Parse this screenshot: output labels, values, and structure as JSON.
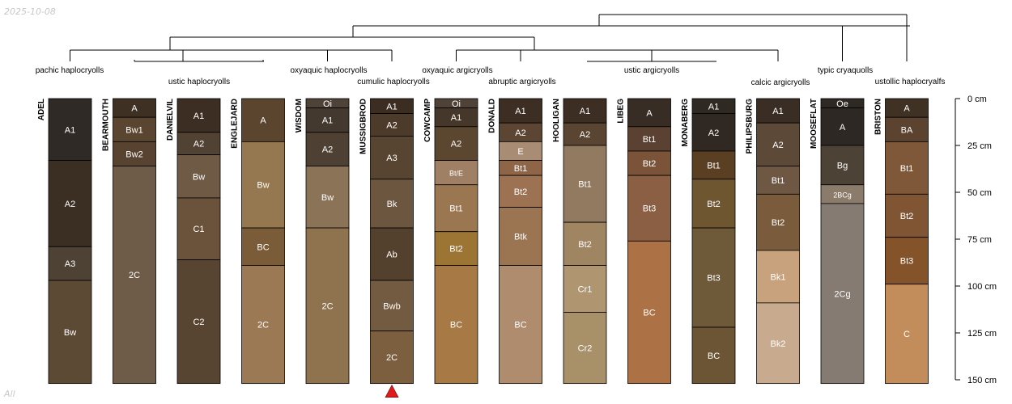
{
  "date_stamp": "2025-10-08",
  "corner_label": "All",
  "colors": {
    "line": "#000000",
    "marker": "#e01b1b",
    "horizon_text_light": "#ffffff"
  },
  "depth_axis": {
    "unit": "cm",
    "max_depth": 150,
    "ticks": [
      "0 cm",
      "25 cm",
      "50 cm",
      "75 cm",
      "100 cm",
      "125 cm",
      "150 cm"
    ]
  },
  "taxa_labels": [
    "pachic haplocryolls",
    "ustic haplocryolls",
    "oxyaquic haplocryolls",
    "cumulic haplocryolls",
    "oxyaquic argicryolls",
    "abruptic argicryolls",
    "ustic argicryolls",
    "calcic argicryolls",
    "typic cryaquolls",
    "ustollic haplocryalfs"
  ],
  "highlighted_profile": "MUSSIGBROD",
  "profiles": [
    {
      "name": "ADEL",
      "horizons": [
        {
          "name": "A1",
          "top": 0,
          "bottom": 33,
          "color": "#2f2a26"
        },
        {
          "name": "A2",
          "top": 33,
          "bottom": 79,
          "color": "#3b2f24"
        },
        {
          "name": "A3",
          "top": 79,
          "bottom": 97,
          "color": "#4e4235"
        },
        {
          "name": "Bw",
          "top": 97,
          "bottom": 152,
          "color": "#5c4a35"
        }
      ]
    },
    {
      "name": "BEARMOUTH",
      "horizons": [
        {
          "name": "A",
          "top": 0,
          "bottom": 10,
          "color": "#3f3024"
        },
        {
          "name": "Bw1",
          "top": 10,
          "bottom": 23,
          "color": "#5a4530"
        },
        {
          "name": "Bw2",
          "top": 23,
          "bottom": 36,
          "color": "#574330"
        },
        {
          "name": "2C",
          "top": 36,
          "bottom": 152,
          "color": "#6e5c48"
        }
      ]
    },
    {
      "name": "DANIELVIL",
      "horizons": [
        {
          "name": "A1",
          "top": 0,
          "bottom": 18,
          "color": "#3c2e22"
        },
        {
          "name": "A2",
          "top": 18,
          "bottom": 30,
          "color": "#514233"
        },
        {
          "name": "Bw",
          "top": 30,
          "bottom": 53,
          "color": "#6e5a45"
        },
        {
          "name": "C1",
          "top": 53,
          "bottom": 86,
          "color": "#6a533a"
        },
        {
          "name": "C2",
          "top": 86,
          "bottom": 152,
          "color": "#574531"
        }
      ]
    },
    {
      "name": "ENGLEJARD",
      "horizons": [
        {
          "name": "A",
          "top": 0,
          "bottom": 23,
          "color": "#5b452f"
        },
        {
          "name": "Bw",
          "top": 23,
          "bottom": 69,
          "color": "#957850"
        },
        {
          "name": "BC",
          "top": 69,
          "bottom": 89,
          "color": "#7a5c38"
        },
        {
          "name": "2C",
          "top": 89,
          "bottom": 152,
          "color": "#9a7954"
        }
      ]
    },
    {
      "name": "WISDOM",
      "horizons": [
        {
          "name": "Oi",
          "top": 0,
          "bottom": 5,
          "color": "#4f4338"
        },
        {
          "name": "A1",
          "top": 5,
          "bottom": 18,
          "color": "#43392f"
        },
        {
          "name": "A2",
          "top": 18,
          "bottom": 36,
          "color": "#4e4133"
        },
        {
          "name": "Bw",
          "top": 36,
          "bottom": 69,
          "color": "#8b7358"
        },
        {
          "name": "2C",
          "top": 69,
          "bottom": 152,
          "color": "#8f734f"
        }
      ]
    },
    {
      "name": "MUSSIGBROD",
      "horizons": [
        {
          "name": "A1",
          "top": 0,
          "bottom": 8,
          "color": "#3c2d22"
        },
        {
          "name": "A2",
          "top": 8,
          "bottom": 20,
          "color": "#4c3b2b"
        },
        {
          "name": "A3",
          "top": 20,
          "bottom": 43,
          "color": "#574431"
        },
        {
          "name": "Bk",
          "top": 43,
          "bottom": 69,
          "color": "#6c5640"
        },
        {
          "name": "Ab",
          "top": 69,
          "bottom": 97,
          "color": "#54412d"
        },
        {
          "name": "Bwb",
          "top": 97,
          "bottom": 124,
          "color": "#735b42"
        },
        {
          "name": "2C",
          "top": 124,
          "bottom": 152,
          "color": "#7c5f3e"
        }
      ]
    },
    {
      "name": "COWCAMP",
      "horizons": [
        {
          "name": "Oi",
          "top": 0,
          "bottom": 5,
          "color": "#4f4338"
        },
        {
          "name": "A1",
          "top": 5,
          "bottom": 15,
          "color": "#453729"
        },
        {
          "name": "A2",
          "top": 15,
          "bottom": 33,
          "color": "#5b4630"
        },
        {
          "name": "Bt/E",
          "top": 33,
          "bottom": 46,
          "color": "#a08065"
        },
        {
          "name": "Bt1",
          "top": 46,
          "bottom": 71,
          "color": "#9a7750"
        },
        {
          "name": "Bt2",
          "top": 71,
          "bottom": 89,
          "color": "#9c7434"
        },
        {
          "name": "BC",
          "top": 89,
          "bottom": 152,
          "color": "#a77945"
        }
      ]
    },
    {
      "name": "DONALD",
      "horizons": [
        {
          "name": "A1",
          "top": 0,
          "bottom": 13,
          "color": "#3c2e22"
        },
        {
          "name": "A2",
          "top": 13,
          "bottom": 23,
          "color": "#5c4633"
        },
        {
          "name": "E",
          "top": 23,
          "bottom": 33,
          "color": "#a98c74"
        },
        {
          "name": "Bt1",
          "top": 33,
          "bottom": 41,
          "color": "#8f6547"
        },
        {
          "name": "Bt2",
          "top": 41,
          "bottom": 58,
          "color": "#9c7253"
        },
        {
          "name": "Btk",
          "top": 58,
          "bottom": 89,
          "color": "#9b7452"
        },
        {
          "name": "BC",
          "top": 89,
          "bottom": 152,
          "color": "#b08c6e"
        }
      ]
    },
    {
      "name": "HOOLIGAN",
      "horizons": [
        {
          "name": "A1",
          "top": 0,
          "bottom": 13,
          "color": "#3c2e22"
        },
        {
          "name": "A2",
          "top": 13,
          "bottom": 25,
          "color": "#5a4532"
        },
        {
          "name": "Bt1",
          "top": 25,
          "bottom": 66,
          "color": "#917a60"
        },
        {
          "name": "Bt2",
          "top": 66,
          "bottom": 89,
          "color": "#a08563"
        },
        {
          "name": "Cr1",
          "top": 89,
          "bottom": 114,
          "color": "#b09670"
        },
        {
          "name": "Cr2",
          "top": 114,
          "bottom": 152,
          "color": "#a89069"
        }
      ]
    },
    {
      "name": "LIBEG",
      "horizons": [
        {
          "name": "A",
          "top": 0,
          "bottom": 15,
          "color": "#382d24"
        },
        {
          "name": "Bt1",
          "top": 15,
          "bottom": 28,
          "color": "#5a4131"
        },
        {
          "name": "Bt2",
          "top": 28,
          "bottom": 41,
          "color": "#7a5338"
        },
        {
          "name": "Bt3",
          "top": 41,
          "bottom": 76,
          "color": "#8a5f43"
        },
        {
          "name": "BC",
          "top": 76,
          "bottom": 152,
          "color": "#ad7146"
        }
      ]
    },
    {
      "name": "MONABERG",
      "horizons": [
        {
          "name": "A1",
          "top": 0,
          "bottom": 8,
          "color": "#2f2924"
        },
        {
          "name": "A2",
          "top": 8,
          "bottom": 28,
          "color": "#302923"
        },
        {
          "name": "Bt1",
          "top": 28,
          "bottom": 43,
          "color": "#5b3f22"
        },
        {
          "name": "Bt2",
          "top": 43,
          "bottom": 69,
          "color": "#6e5631"
        },
        {
          "name": "Bt3",
          "top": 69,
          "bottom": 122,
          "color": "#6e5a38"
        },
        {
          "name": "BC",
          "top": 122,
          "bottom": 152,
          "color": "#6b5535"
        }
      ]
    },
    {
      "name": "PHILIPSBURG",
      "horizons": [
        {
          "name": "A1",
          "top": 0,
          "bottom": 13,
          "color": "#3a2e24"
        },
        {
          "name": "A2",
          "top": 13,
          "bottom": 36,
          "color": "#5c4938"
        },
        {
          "name": "Bt1",
          "top": 36,
          "bottom": 51,
          "color": "#6f5843"
        },
        {
          "name": "Bt2",
          "top": 51,
          "bottom": 81,
          "color": "#7a5b3b"
        },
        {
          "name": "Bk1",
          "top": 81,
          "bottom": 109,
          "color": "#c7a27c"
        },
        {
          "name": "Bk2",
          "top": 109,
          "bottom": 152,
          "color": "#c8ab8e"
        }
      ]
    },
    {
      "name": "MOOSEFLAT",
      "horizons": [
        {
          "name": "Oe",
          "top": 0,
          "bottom": 5,
          "color": "#2f2924"
        },
        {
          "name": "A",
          "top": 5,
          "bottom": 25,
          "color": "#2d2823"
        },
        {
          "name": "Bg",
          "top": 25,
          "bottom": 46,
          "color": "#4d4236"
        },
        {
          "name": "2BCg",
          "top": 46,
          "bottom": 56,
          "color": "#8b7b6b"
        },
        {
          "name": "2Cg",
          "top": 56,
          "bottom": 152,
          "color": "#857b72"
        }
      ]
    },
    {
      "name": "BRISTON",
      "horizons": [
        {
          "name": "A",
          "top": 0,
          "bottom": 10,
          "color": "#3f3124"
        },
        {
          "name": "BA",
          "top": 10,
          "bottom": 23,
          "color": "#5b4330"
        },
        {
          "name": "Bt1",
          "top": 23,
          "bottom": 51,
          "color": "#7e5838"
        },
        {
          "name": "Bt2",
          "top": 51,
          "bottom": 74,
          "color": "#7f5533"
        },
        {
          "name": "Bt3",
          "top": 74,
          "bottom": 99,
          "color": "#845329"
        },
        {
          "name": "C",
          "top": 99,
          "bottom": 152,
          "color": "#c38d5b"
        }
      ]
    }
  ]
}
